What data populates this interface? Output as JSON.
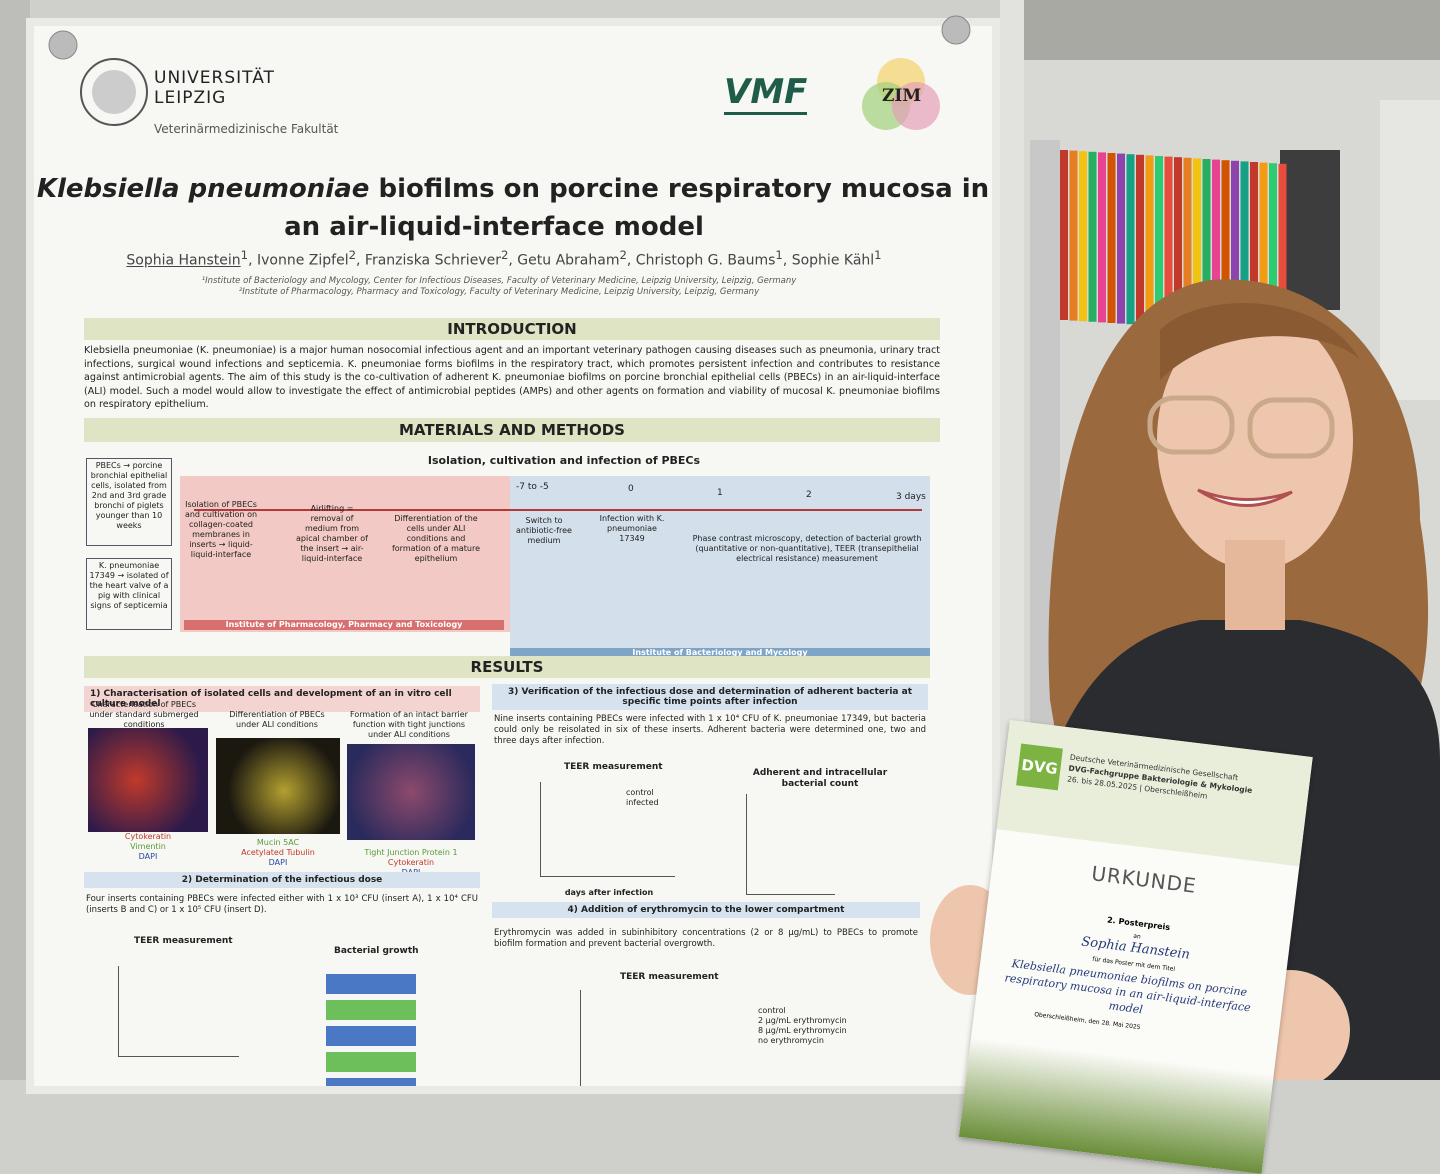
{
  "poster": {
    "university": [
      "UNIVERSITÄT",
      "LEIPZIG"
    ],
    "faculty": "Veterinärmedizinische Fakultät",
    "logos": [
      "VMF",
      "ZIM"
    ],
    "title": {
      "italic": "Klebsiella pneumoniae",
      "rest": "biofilms on porcine respiratory mucosa in",
      "line2": "an air-liquid-interface model"
    },
    "authors": [
      {
        "name": "Sophia Hanstein",
        "aff": 1
      },
      {
        "name": "Ivonne Zipfel",
        "aff": 2
      },
      {
        "name": "Franziska Schriever",
        "aff": 2
      },
      {
        "name": "Getu Abraham",
        "aff": 2
      },
      {
        "name": "Christoph G. Baums",
        "aff": 1
      },
      {
        "name": "Sophie Kähl",
        "aff": 1
      }
    ],
    "affiliations": [
      "¹Institute of Bacteriology and Mycology, Center for Infectious Diseases, Faculty of Veterinary Medicine, Leipzig University, Leipzig, Germany",
      "²Institute of Pharmacology, Pharmacy and Toxicology, Faculty of Veterinary Medicine, Leipzig University, Leipzig, Germany"
    ],
    "introduction": {
      "heading": "INTRODUCTION",
      "text": "Klebsiella pneumoniae (K. pneumoniae) is a major human nosocomial infectious agent and an important veterinary pathogen causing diseases such as pneumonia, urinary tract infections, surgical wound infections and septicemia. K. pneumoniae forms biofilms in the respiratory tract, which promotes persistent infection and contributes to resistance against antimicrobial agents. The aim of this study is the co-cultivation of adherent K. pneumoniae biofilms on porcine bronchial epithelial cells (PBECs) in an air-liquid-interface (ALI) model. Such a model would allow to investigate the effect of antimicrobial peptides (AMPs) and other agents on formation and viability of mucosal K. pneumoniae biofilms on respiratory epithelium."
    },
    "methods": {
      "heading": "MATERIALS AND METHODS",
      "subtitle": "Isolation, cultivation and infection of PBECs",
      "side_boxes": [
        "PBECs → porcine bronchial epithelial cells, isolated from 2nd and 3rd grade bronchi of piglets younger than 10 weeks",
        "K. pneumoniae 17349 → isolated of the heart valve of a pig with clinical signs of septicemia"
      ],
      "timeline": [
        "-7 to -5",
        "0",
        "1",
        "2",
        "3 days"
      ],
      "steps": [
        "Isolation of PBECs and cultivation on collagen-coated membranes in inserts → liquid-liquid-interface",
        "Airlifting = removal of medium from apical chamber of the insert → air-liquid-interface",
        "Differentiation of the cells under ALI conditions and formation of a mature epithelium",
        "Switch to antibiotic-free medium",
        "Infection with K. pneumoniae 17349",
        "Phase contrast microscopy, detection of bacterial growth (quantitative or non-quantitative), TEER (transepithelial electrical resistance) measurement"
      ],
      "institutes": [
        "Institute of Pharmacology, Pharmacy and Toxicology",
        "Institute of Bacteriology and Mycology"
      ]
    },
    "results": {
      "heading": "RESULTS",
      "section1": "1) Characterisation of isolated cells and development of an in vitro cell culture model",
      "images": [
        {
          "caption": "Characterisation of PBECs under standard submerged conditions",
          "stain": [
            "Cytokeratin",
            "Vimentin",
            "DAPI"
          ]
        },
        {
          "caption": "Differentiation of PBECs under ALI conditions",
          "stain": [
            "Mucin 5AC",
            "Acetylated Tubulin",
            "DAPI"
          ]
        },
        {
          "caption": "Formation of an intact barrier function with tight junctions under ALI conditions",
          "stain": [
            "Tight Junction Protein 1",
            "Cytokeratin",
            "DAPI"
          ]
        }
      ],
      "section2": "2) Determination of the infectious dose",
      "section2_text": "Four inserts containing PBECs were infected either with 1 x 10³ CFU (insert A), 1 x 10⁴ CFU (inserts B and C) or 1 x 10⁵ CFU (insert D).",
      "section2_charts": [
        "TEER measurement",
        "Bacterial growth"
      ],
      "section3": "3) Verification of the infectious dose and determination of adherent bacteria at specific time points after infection",
      "section3_text": "Nine inserts containing PBECs were infected with 1 x 10⁴ CFU of K. pneumoniae 17349, but bacteria could only be reisolated in six of these inserts. Adherent bacteria were determined one, two and three days after infection.",
      "section3_charts": [
        "TEER measurement",
        "Adherent and intracellular bacterial count"
      ],
      "section3_legend": [
        "control",
        "infected"
      ],
      "section4": "4) Addition of erythromycin to the lower compartment",
      "section4_text": "Erythromycin was added in subinhibitory concentrations (2 or 8 µg/mL) to PBECs to promote biofilm formation and prevent bacterial overgrowth.",
      "section4_chart": "TEER measurement",
      "section4_legend": [
        "control",
        "2 µg/mL erythromycin",
        "8 µg/mL erythromycin",
        "no erythromycin"
      ],
      "x_axis": "days after infection"
    }
  },
  "certificate": {
    "logo": "DVG",
    "society": "Deutsche Veterinärmedizinische Gesellschaft",
    "group": "DVG-Fachgruppe Bakteriologie & Mykologie",
    "event": "26. bis 28.05.2025 | Oberschleißheim",
    "heading": "URKUNDE",
    "award": "2. Posterpreis",
    "to": "an",
    "recipient": "Sophia Hanstein",
    "for": "für das Poster mit dem Titel",
    "poster_title": "Klebsiella pneumoniae biofilms on porcine respiratory mucosa in an air-liquid-interface model",
    "place_date": "Oberschleißheim, den 28. Mai 2025"
  }
}
